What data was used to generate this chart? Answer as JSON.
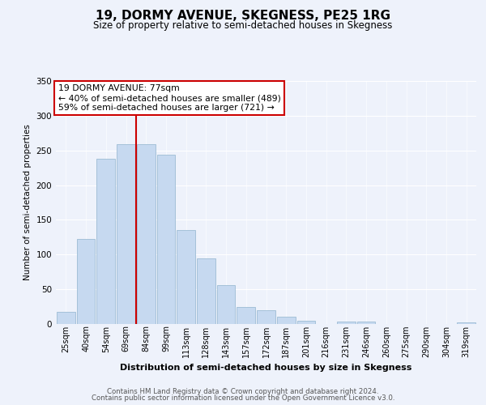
{
  "title": "19, DORMY AVENUE, SKEGNESS, PE25 1RG",
  "subtitle": "Size of property relative to semi-detached houses in Skegness",
  "xlabel": "Distribution of semi-detached houses by size in Skegness",
  "ylabel": "Number of semi-detached properties",
  "bar_labels": [
    "25sqm",
    "40sqm",
    "54sqm",
    "69sqm",
    "84sqm",
    "99sqm",
    "113sqm",
    "128sqm",
    "143sqm",
    "157sqm",
    "172sqm",
    "187sqm",
    "201sqm",
    "216sqm",
    "231sqm",
    "246sqm",
    "260sqm",
    "275sqm",
    "290sqm",
    "304sqm",
    "319sqm"
  ],
  "bar_values": [
    17,
    123,
    238,
    259,
    259,
    244,
    135,
    94,
    56,
    25,
    20,
    10,
    5,
    0,
    3,
    3,
    0,
    0,
    0,
    0,
    2
  ],
  "bar_color": "#c6d9f0",
  "bar_edge_color": "#9dbcd4",
  "vline_color": "#cc0000",
  "vline_x": 3.5,
  "ylim": [
    0,
    350
  ],
  "yticks": [
    0,
    50,
    100,
    150,
    200,
    250,
    300,
    350
  ],
  "annotation_title": "19 DORMY AVENUE: 77sqm",
  "annotation_line1": "← 40% of semi-detached houses are smaller (489)",
  "annotation_line2": "59% of semi-detached houses are larger (721) →",
  "annotation_box_color": "#ffffff",
  "annotation_box_edge": "#cc0000",
  "footer_line1": "Contains HM Land Registry data © Crown copyright and database right 2024.",
  "footer_line2": "Contains public sector information licensed under the Open Government Licence v3.0.",
  "background_color": "#eef2fb",
  "plot_background": "#eef2fb",
  "title_fontsize": 11,
  "subtitle_fontsize": 8.5
}
